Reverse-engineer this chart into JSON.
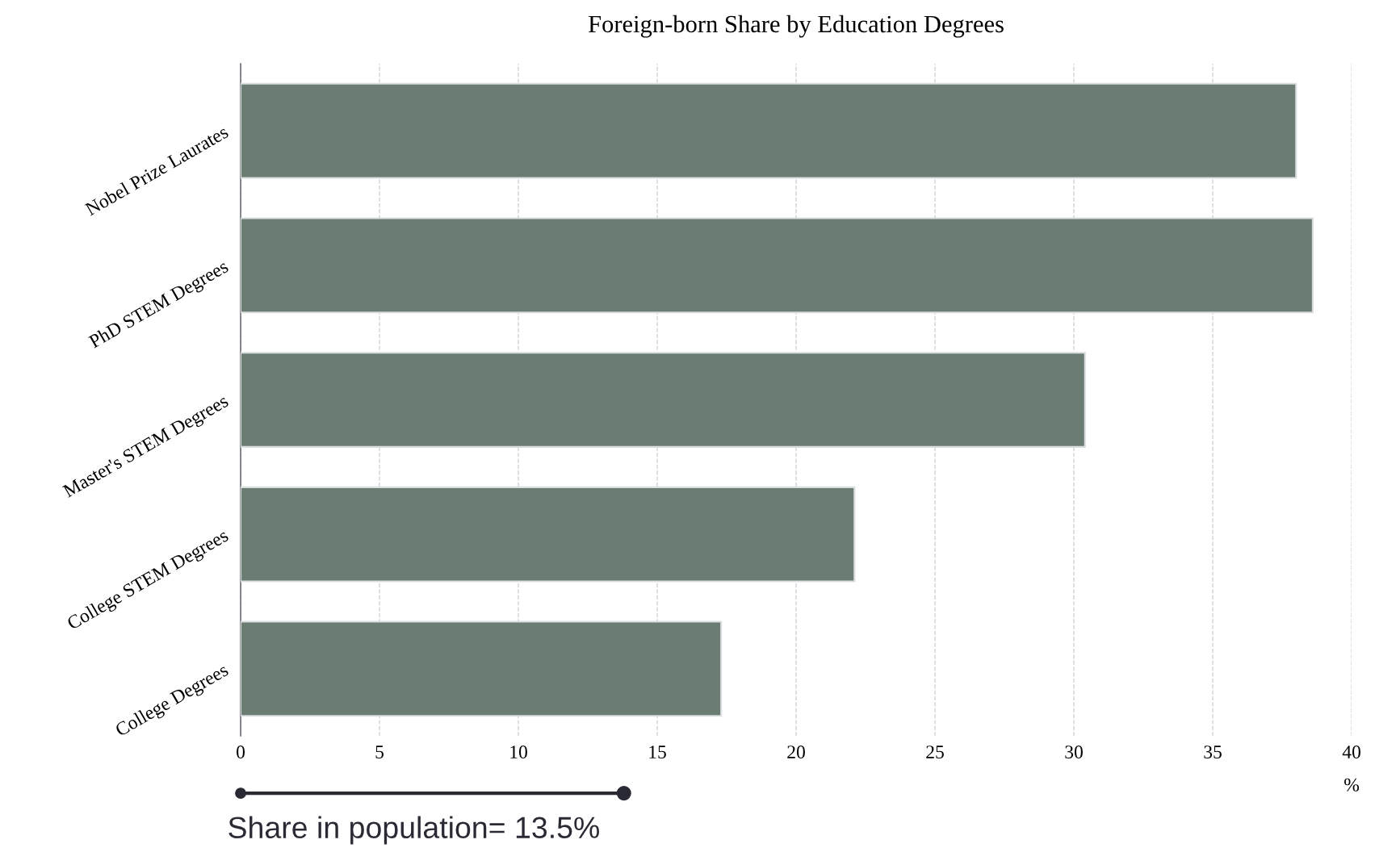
{
  "chart_data": {
    "type": "bar",
    "orientation": "horizontal",
    "title": "Foreign-born Share by Education Degrees",
    "xlabel": "%",
    "categories": [
      "Nobel Prize Laurates",
      "PhD STEM Degrees",
      "Master's STEM Degrees",
      "College STEM Degrees",
      "College Degrees"
    ],
    "values": [
      38.0,
      38.6,
      30.4,
      22.1,
      17.3
    ],
    "color": "#6b7d72",
    "xlim": [
      0,
      40
    ],
    "xticks": [
      0,
      5,
      10,
      15,
      20,
      25,
      30,
      35,
      40
    ],
    "grid": "x",
    "line_style": "dashed",
    "annotations": [
      "Share in population= 13.5%"
    ]
  }
}
